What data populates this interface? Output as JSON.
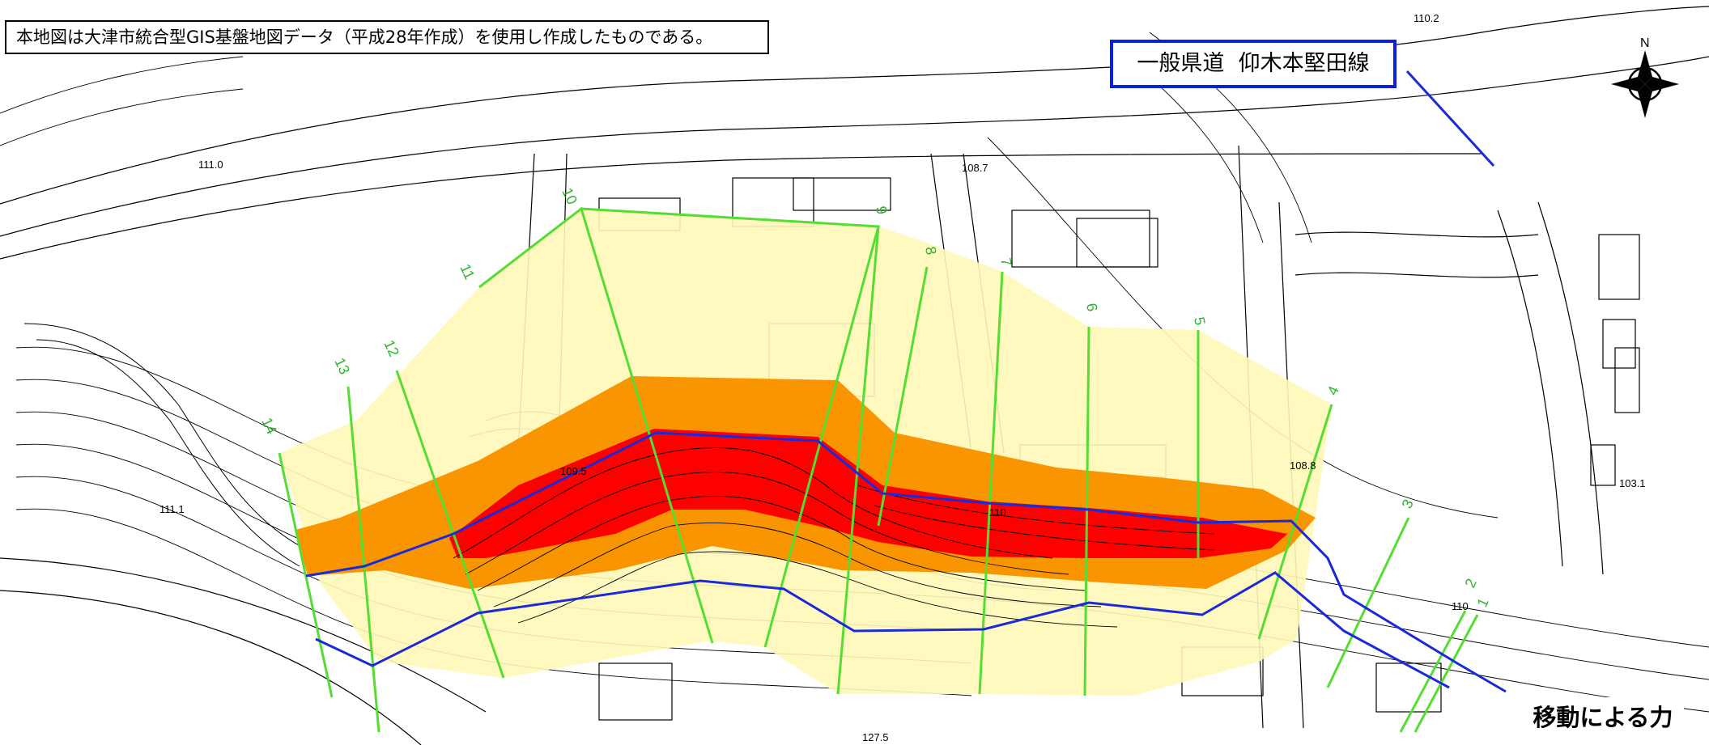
{
  "map": {
    "notice": "本地図は大津市統合型GIS基盤地図データ（平成28年作成）を使用し作成したものである。",
    "road_label": "一般県道  仰木本堅田線",
    "legend_label": "移動による力",
    "north_label": "N",
    "elevation_labels": [
      "111.0",
      "108.7",
      "110.2",
      "111.1",
      "109.5",
      "110",
      "108.8",
      "103.1",
      "110",
      "127.5"
    ],
    "section_numbers": [
      "1",
      "2",
      "3",
      "4",
      "5",
      "6",
      "7",
      "8",
      "9",
      "10",
      "11",
      "12",
      "13",
      "14"
    ],
    "colors": {
      "zone_yellow": "#fff8b8",
      "zone_orange": "#f89500",
      "zone_red": "#ff0000",
      "section_lines": "#55dd33",
      "boundary_lines": "#1a2ad8",
      "base_lines": "#000000"
    }
  }
}
